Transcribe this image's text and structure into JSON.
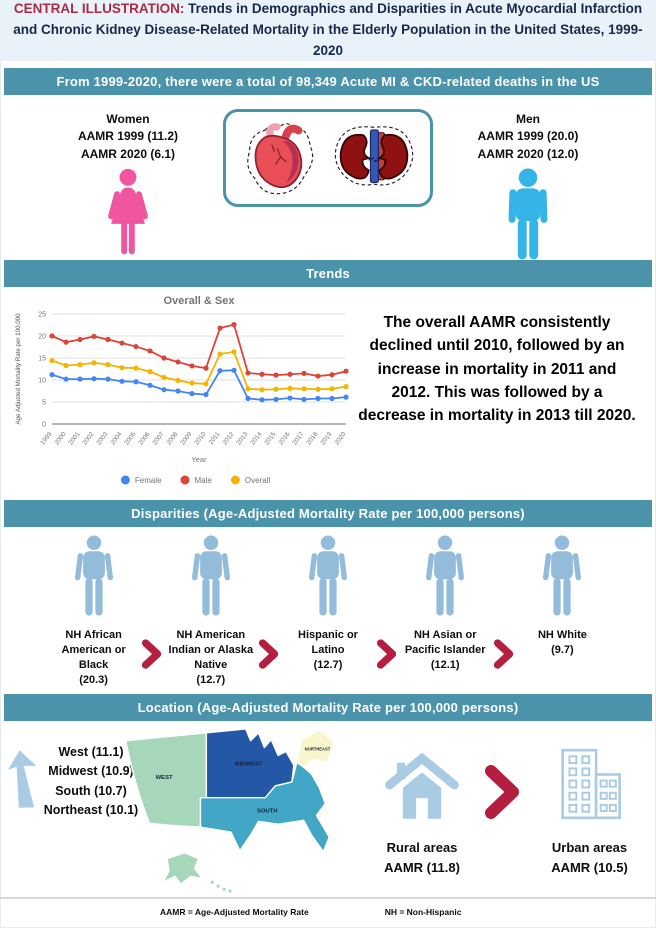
{
  "header": {
    "label": "CENTRAL ILLUSTRATION:",
    "title": " Trends in Demographics and Disparities in Acute Myocardial Infarction and Chronic Kidney Disease-Related Mortality in the Elderly Population in the United States, 1999-2020"
  },
  "banner_total": "From 1999-2020, there were a total of 98,349 Acute MI & CKD-related deaths in the US",
  "sections": {
    "trends": "Trends",
    "disparities": "Disparities (Age-Adjusted Mortality Rate per 100,000 persons)",
    "location": "Location (Age-Adjusted Mortality Rate per 100,000 persons)"
  },
  "demographics": {
    "women": {
      "title": "Women",
      "line1": "AAMR 1999 (11.2)",
      "line2": "AAMR 2020 (6.1)"
    },
    "men": {
      "title": "Men",
      "line1": "AAMR 1999 (20.0)",
      "line2": "AAMR 2020 (12.0)"
    }
  },
  "trends": {
    "summary": "The overall AAMR consistently declined until 2010, followed by an increase in mortality in 2011 and 2012. This was followed by a decrease in mortality in 2013 till 2020."
  },
  "chart_data": {
    "type": "line",
    "title": "Overall & Sex",
    "xlabel": "Year",
    "ylabel": "Age Adjusted Mortality Rate per 100,000",
    "ylim": [
      0,
      25
    ],
    "yticks": [
      0,
      5,
      10,
      15,
      20,
      25
    ],
    "grid": true,
    "legend_position": "bottom",
    "x": [
      "1999",
      "2000",
      "2001",
      "2002",
      "2003",
      "2004",
      "2005",
      "2006",
      "2007",
      "2008",
      "2009",
      "2010",
      "2011",
      "2012",
      "2013",
      "2014",
      "2015",
      "2016",
      "2017",
      "2018",
      "2019",
      "2020"
    ],
    "series": [
      {
        "name": "Female",
        "color": "#4285F4",
        "values": [
          11.2,
          10.2,
          10.2,
          10.3,
          10.2,
          9.7,
          9.6,
          8.8,
          7.8,
          7.5,
          6.9,
          6.7,
          12.1,
          12.2,
          5.8,
          5.5,
          5.6,
          5.9,
          5.6,
          5.8,
          5.8,
          6.1
        ]
      },
      {
        "name": "Male",
        "color": "#DB4437",
        "values": [
          20.0,
          18.6,
          19.2,
          19.9,
          19.2,
          18.4,
          17.6,
          16.6,
          15.0,
          14.1,
          13.2,
          12.7,
          21.8,
          22.6,
          11.6,
          11.3,
          11.1,
          11.3,
          11.5,
          10.9,
          11.2,
          12.0
        ]
      },
      {
        "name": "Overall",
        "color": "#F4B400",
        "values": [
          14.4,
          13.3,
          13.5,
          13.9,
          13.5,
          12.8,
          12.7,
          11.9,
          10.6,
          9.9,
          9.3,
          9.1,
          15.9,
          16.4,
          8.0,
          7.8,
          7.9,
          8.1,
          8.0,
          7.9,
          8.0,
          8.5
        ]
      }
    ]
  },
  "disparities": {
    "groups": [
      {
        "label": "NH African American or Black",
        "value": "(20.3)"
      },
      {
        "label": "NH American Indian or Alaska Native",
        "value": "(12.7)"
      },
      {
        "label": "Hispanic or Latino",
        "value": "(12.7)"
      },
      {
        "label": "NH Asian or Pacific Islander",
        "value": "(12.1)"
      },
      {
        "label": "NH White",
        "value": "(9.7)"
      }
    ]
  },
  "location": {
    "regions_list": [
      "West (11.1)",
      "Midwest (10.9)",
      "South (10.7)",
      "Northeast (10.1)"
    ],
    "map_labels": {
      "west": "WEST",
      "midwest": "MIDWEST",
      "northeast": "NORTHEAST",
      "south": "SOUTH"
    },
    "map_colors": {
      "west": "#a7d7bb",
      "midwest": "#2458a6",
      "northeast": "#f9f5cd",
      "south": "#42a7c6"
    },
    "rural": {
      "line1": "Rural areas",
      "line2": "AAMR (11.8)"
    },
    "urban": {
      "line1": "Urban areas",
      "line2": "AAMR (10.5)"
    }
  },
  "footnotes": {
    "aamr": "AAMR = Age-Adjusted Mortality Rate",
    "nh": "NH = Non-Hispanic"
  },
  "colors": {
    "teal_banner": "#4b93ab",
    "header_bg": "#e9f2f9",
    "crimson_label": "#ae2a45",
    "navy_text": "#16284a",
    "women_pink": "#f0559f",
    "men_blue": "#35b4e8",
    "person_blue": "#93bcdb",
    "icon_blue": "#a9cbe4",
    "chevron_red": "#b41f3f"
  }
}
